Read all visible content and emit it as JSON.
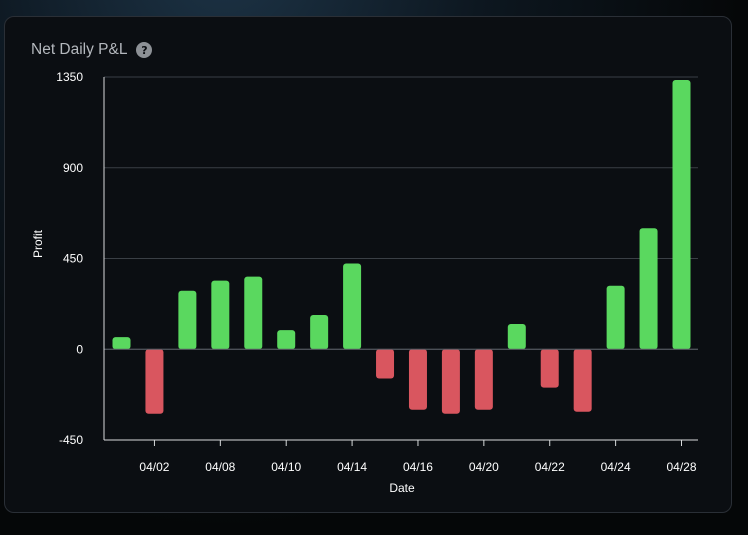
{
  "chart_data": {
    "type": "bar",
    "title": "Net Daily P&L",
    "xlabel": "Date",
    "ylabel": "Profit",
    "ylim": [
      -450,
      1350
    ],
    "yticks": [
      1350,
      900,
      450,
      0,
      -450
    ],
    "xtick_labels": [
      "04/02",
      "04/08",
      "04/10",
      "04/14",
      "04/16",
      "04/20",
      "04/22",
      "04/24",
      "04/28"
    ],
    "values": [
      60,
      -320,
      290,
      340,
      360,
      95,
      170,
      425,
      -145,
      -300,
      -320,
      -300,
      125,
      -190,
      -310,
      315,
      600,
      1335
    ],
    "positive_color": "#5ad85f",
    "negative_color": "#d9565f",
    "grid": "horizontal"
  },
  "header": {
    "title": "Net Daily P&L",
    "help_icon": "?"
  }
}
